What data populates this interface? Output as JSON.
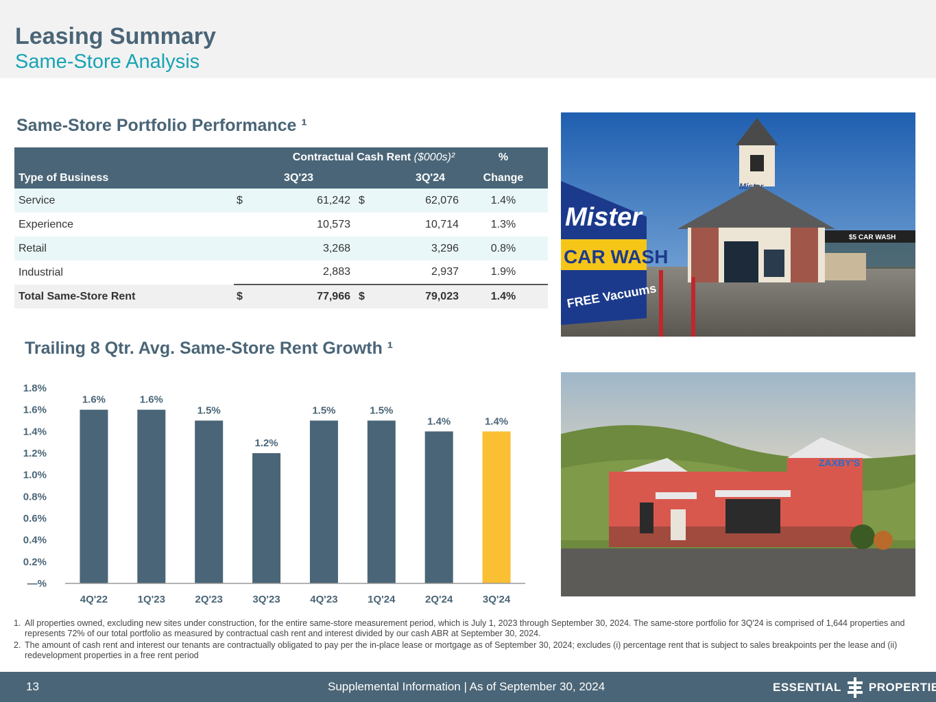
{
  "header": {
    "title": "Leasing Summary",
    "subtitle": "Same-Store Analysis"
  },
  "table_section": {
    "title": "Same-Store Portfolio Performance ¹",
    "header_top": {
      "group": "Contractual Cash Rent",
      "group_unit": "($000s)²",
      "pct": "%"
    },
    "header_bottom": {
      "type": "Type of Business",
      "q1": "3Q'23",
      "q2": "3Q'24",
      "change": "Change"
    },
    "rows": [
      {
        "type": "Service",
        "dollar1": "$",
        "v1": "61,242",
        "dollar2": "$",
        "v2": "62,076",
        "change": "1.4%"
      },
      {
        "type": "Experience",
        "dollar1": "",
        "v1": "10,573",
        "dollar2": "",
        "v2": "10,714",
        "change": "1.3%"
      },
      {
        "type": "Retail",
        "dollar1": "",
        "v1": "3,268",
        "dollar2": "",
        "v2": "3,296",
        "change": "0.8%"
      },
      {
        "type": "Industrial",
        "dollar1": "",
        "v1": "2,883",
        "dollar2": "",
        "v2": "2,937",
        "change": "1.9%"
      }
    ],
    "total": {
      "type": "Total Same-Store Rent",
      "dollar1": "$",
      "v1": "77,966",
      "dollar2": "$",
      "v2": "79,023",
      "change": "1.4%"
    }
  },
  "chart_section": {
    "title": "Trailing 8 Qtr. Avg. Same-Store Rent Growth ¹"
  },
  "chart_data": {
    "type": "bar",
    "categories": [
      "4Q'22",
      "1Q'23",
      "2Q'23",
      "3Q'23",
      "4Q'23",
      "1Q'24",
      "2Q'24",
      "3Q'24"
    ],
    "values": [
      1.6,
      1.6,
      1.5,
      1.2,
      1.5,
      1.5,
      1.4,
      1.4
    ],
    "data_labels": [
      "1.6%",
      "1.6%",
      "1.5%",
      "1.2%",
      "1.5%",
      "1.5%",
      "1.4%",
      "1.4%"
    ],
    "ylim": [
      0,
      1.8
    ],
    "yticks": [
      0,
      0.2,
      0.4,
      0.6,
      0.8,
      1.0,
      1.2,
      1.4,
      1.6,
      1.8
    ],
    "ytick_labels": [
      "—%",
      "0.2%",
      "0.4%",
      "0.6%",
      "0.8%",
      "1.0%",
      "1.2%",
      "1.4%",
      "1.6%",
      "1.8%"
    ],
    "bar_color": "#4a6577",
    "highlight_color": "#fbbf33",
    "highlight_index": 7,
    "grid": false,
    "title": "",
    "xlabel": "",
    "ylabel": ""
  },
  "photos": {
    "car_wash": {
      "sign_line1": "Mister",
      "sign_line2": "CAR WASH",
      "sign_line3": "FREE Vacuums",
      "tower_text": "Mister",
      "banner": "$5 CAR WASH"
    },
    "restaurant": {
      "sign": "ZAXBY'S"
    }
  },
  "footnotes": [
    {
      "n": "1.",
      "text": "All properties owned, excluding new sites under construction, for the entire same-store measurement period, which is July 1, 2023 through September 30, 2024. The same-store portfolio for 3Q'24 is comprised of 1,644 properties and represents 72% of our total portfolio as measured by contractual cash rent and interest divided by our cash ABR at September 30, 2024."
    },
    {
      "n": "2.",
      "text": "The amount of cash rent and interest our tenants are contractually obligated to pay per the in-place lease or mortgage as of September 30, 2024; excludes (i) percentage rent that is subject to sales breakpoints per the lease and (ii) redevelopment properties in a free rent period"
    }
  ],
  "footer": {
    "page": "13",
    "info": "Supplemental Information |  As of September 30, 2024",
    "logo_left": "ESSENTIAL",
    "logo_right": "PROPERTIES"
  }
}
